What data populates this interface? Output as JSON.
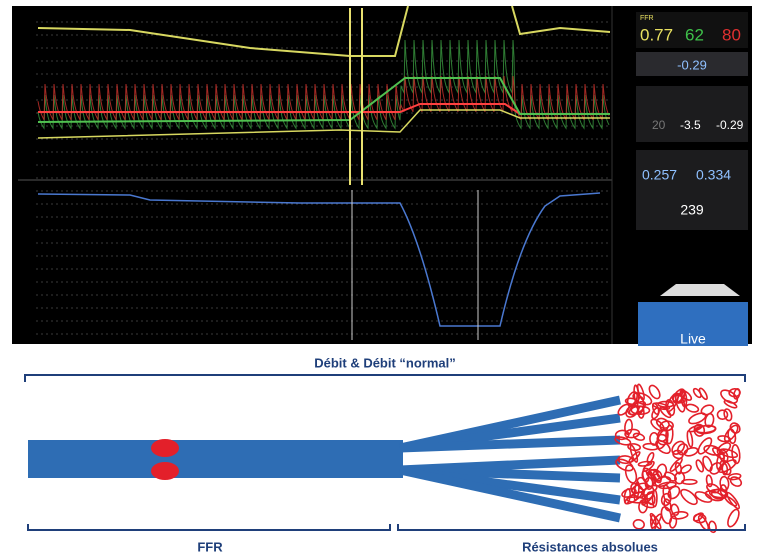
{
  "monitor": {
    "readouts": {
      "ffr_label": "FFR",
      "ffr": 0.77,
      "pd": 62,
      "pa": 80
    },
    "delta_t": -0.29,
    "temps": {
      "ref": 20,
      "inf": -3.5,
      "delta": -0.29
    },
    "flows": {
      "q_rest": 0.257,
      "q_hyper": 0.334,
      "resistance": 239
    },
    "button": "Live"
  },
  "diagram": {
    "top_label": "Débit & Débit “normal”",
    "left_label": "FFR",
    "right_label": "Résistances  absolues"
  }
}
